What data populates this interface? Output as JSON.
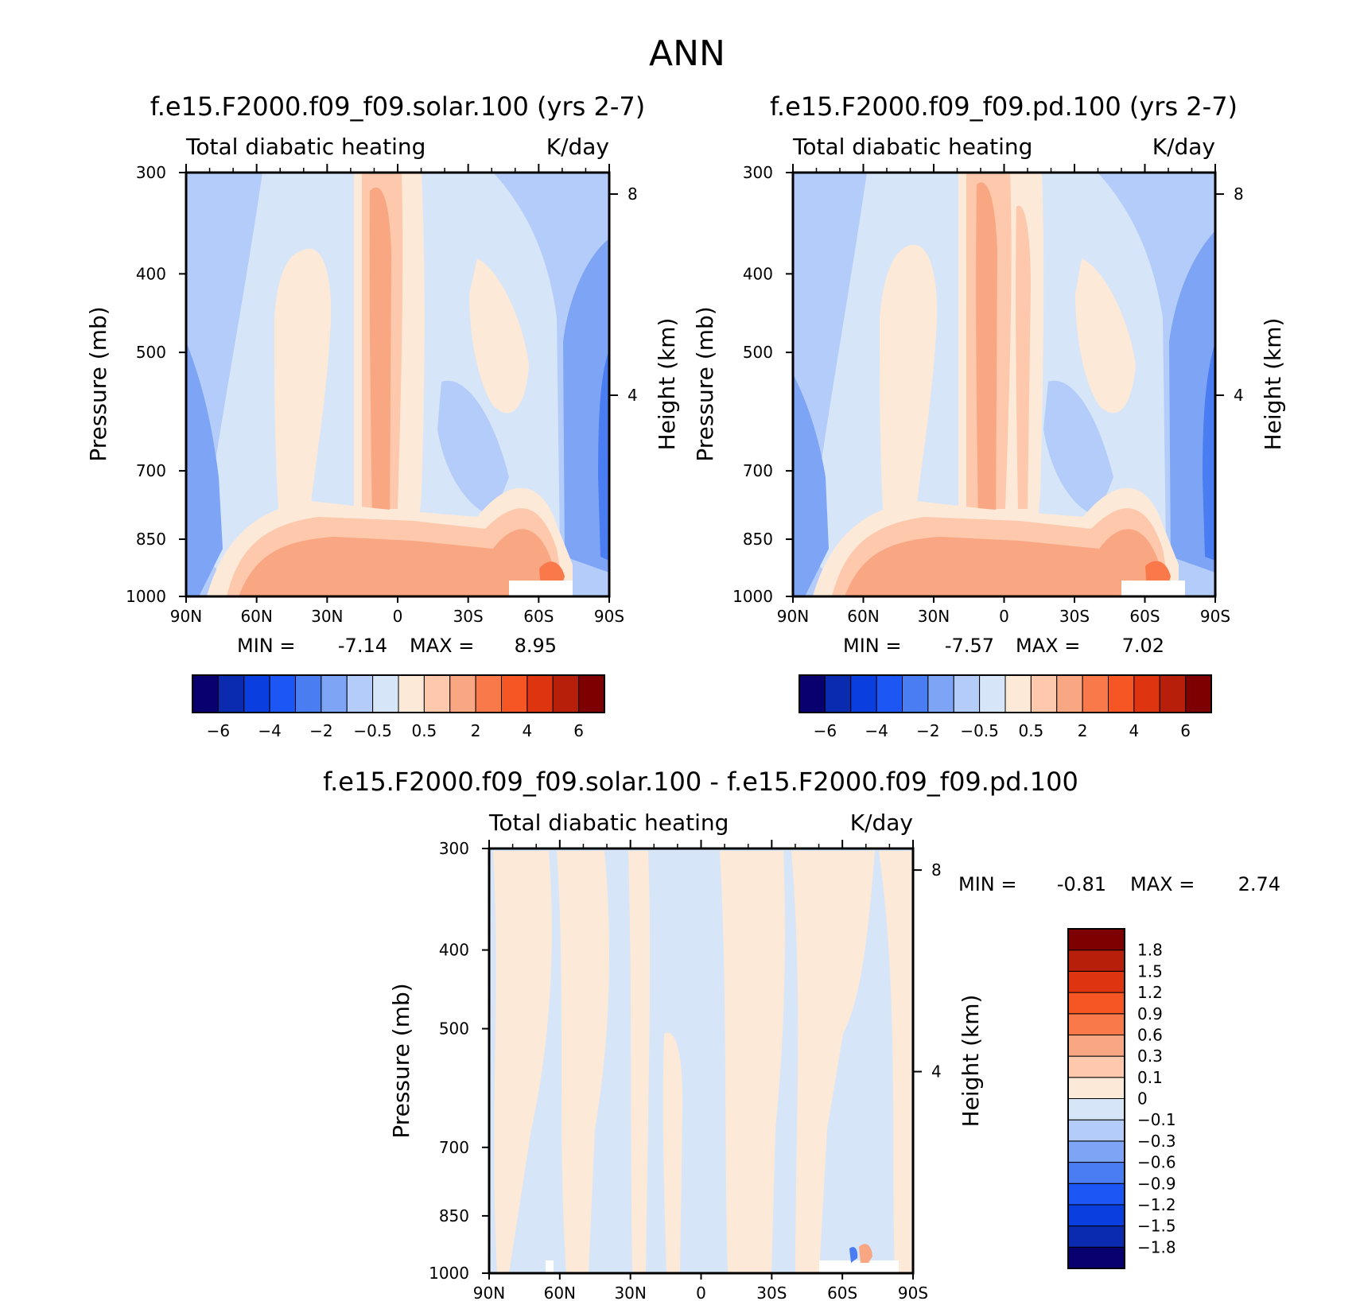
{
  "figure": {
    "title": "ANN"
  },
  "chart_data": [
    {
      "type": "heatmap",
      "panel": "control",
      "title": "f.e15.F2000.f09_f09.solar.100 (yrs 2-7)",
      "subtitle_left": "Total diabatic heating",
      "subtitle_right": "K/day",
      "xlabel": "",
      "ylabel": "Pressure (mb)",
      "ylabel_right": "Height (km)",
      "x_ticks": [
        "90N",
        "60N",
        "30N",
        "0",
        "30S",
        "60S",
        "90S"
      ],
      "y_ticks": [
        "300",
        "400",
        "500",
        "700",
        "850",
        "1000"
      ],
      "y_right_ticks": [
        "8",
        "4"
      ],
      "ylim": [
        1000,
        300
      ],
      "min_label": "MIN =",
      "min_value": "-7.14",
      "max_label": "MAX =",
      "max_value": "8.95",
      "colorbar_levels": [
        "-6",
        "-4",
        "-2",
        "-0.5",
        "0.5",
        "2",
        "4",
        "6"
      ]
    },
    {
      "type": "heatmap",
      "panel": "test",
      "title": "f.e15.F2000.f09_f09.pd.100 (yrs 2-7)",
      "subtitle_left": "Total diabatic heating",
      "subtitle_right": "K/day",
      "xlabel": "",
      "ylabel": "Pressure (mb)",
      "ylabel_right": "Height (km)",
      "x_ticks": [
        "90N",
        "60N",
        "30N",
        "0",
        "30S",
        "60S",
        "90S"
      ],
      "y_ticks": [
        "300",
        "400",
        "500",
        "700",
        "850",
        "1000"
      ],
      "y_right_ticks": [
        "8",
        "4"
      ],
      "ylim": [
        1000,
        300
      ],
      "min_label": "MIN =",
      "min_value": "-7.57",
      "max_label": "MAX =",
      "max_value": "7.02",
      "colorbar_levels": [
        "-6",
        "-4",
        "-2",
        "-0.5",
        "0.5",
        "2",
        "4",
        "6"
      ]
    },
    {
      "type": "heatmap",
      "panel": "difference",
      "title": "f.e15.F2000.f09_f09.solar.100 - f.e15.F2000.f09_f09.pd.100",
      "subtitle_left": "Total diabatic heating",
      "subtitle_right": "K/day",
      "xlabel": "",
      "ylabel": "Pressure (mb)",
      "ylabel_right": "Height (km)",
      "x_ticks": [
        "90N",
        "60N",
        "30N",
        "0",
        "30S",
        "60S",
        "90S"
      ],
      "y_ticks": [
        "300",
        "400",
        "500",
        "700",
        "850",
        "1000"
      ],
      "y_right_ticks": [
        "8",
        "4"
      ],
      "ylim": [
        1000,
        300
      ],
      "min_label": "MIN =",
      "min_value": "-0.81",
      "max_label": "MAX =",
      "max_value": "2.74",
      "colorbar_levels": [
        "1.8",
        "1.5",
        "1.2",
        "0.9",
        "0.6",
        "0.3",
        "0.1",
        "0",
        "-0.1",
        "-0.3",
        "-0.6",
        "-0.9",
        "-1.2",
        "-1.5",
        "-1.8"
      ]
    }
  ],
  "palette": [
    "#08006e",
    "#0a2bb0",
    "#0a3ede",
    "#1c56f5",
    "#4a7cf2",
    "#7ea4f5",
    "#b3ccf9",
    "#d6e6f8",
    "#fde9d8",
    "#fdc8ab",
    "#f9a683",
    "#f9794a",
    "#f65524",
    "#df3410",
    "#b81f0a",
    "#7f0000"
  ]
}
